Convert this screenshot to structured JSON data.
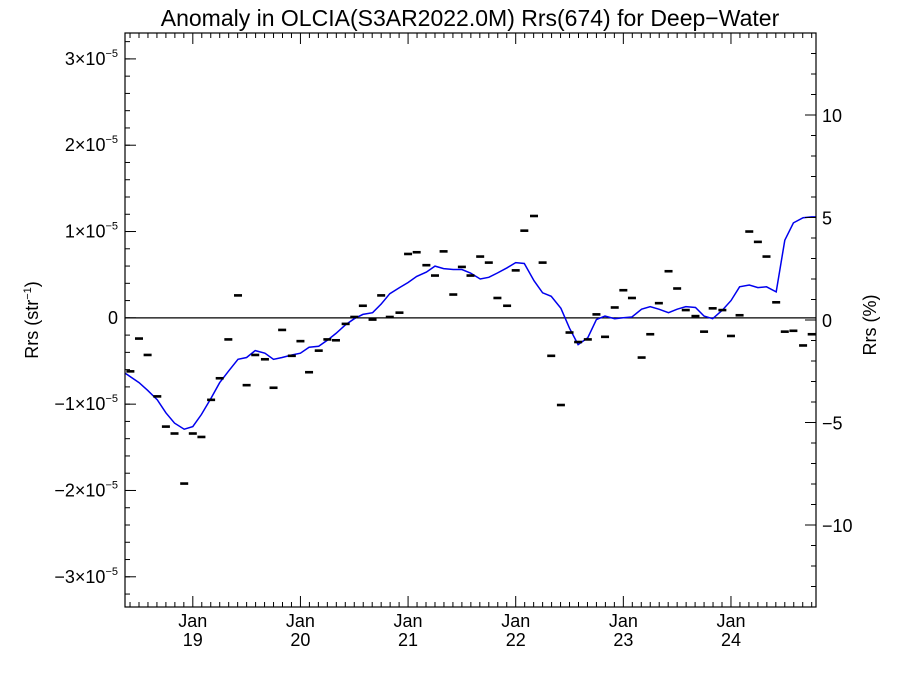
{
  "chart_data": {
    "type": "line",
    "title": "Anomaly in OLCIA(S3AR2022.0M) Rrs(674) for Deep−Water",
    "ylabel_left": {
      "main": "Rrs (str",
      "sup": "−1",
      "close": ")"
    },
    "ylabel_right": "Rrs (%)",
    "xlim": [
      2018.37,
      2024.79
    ],
    "ylim_left": [
      -3.35e-05,
      3.3e-05
    ],
    "ylim_right": [
      -14,
      14
    ],
    "x_ticks": [
      {
        "x": 2019.0,
        "month": "Jan",
        "year": "19"
      },
      {
        "x": 2020.0,
        "month": "Jan",
        "year": "20"
      },
      {
        "x": 2021.0,
        "month": "Jan",
        "year": "21"
      },
      {
        "x": 2022.0,
        "month": "Jan",
        "year": "22"
      },
      {
        "x": 2023.0,
        "month": "Jan",
        "year": "23"
      },
      {
        "x": 2024.0,
        "month": "Jan",
        "year": "24"
      }
    ],
    "y_ticks_left": [
      {
        "v": 3e-05,
        "label": "3×10",
        "exp": "−5"
      },
      {
        "v": 2e-05,
        "label": "2×10",
        "exp": "−5"
      },
      {
        "v": 1e-05,
        "label": "1×10",
        "exp": "−5"
      },
      {
        "v": 0,
        "label": "0",
        "exp": ""
      },
      {
        "v": -1e-05,
        "label": "−1×10",
        "exp": "−5"
      },
      {
        "v": -2e-05,
        "label": "−2×10",
        "exp": "−5"
      },
      {
        "v": -3e-05,
        "label": "−3×10",
        "exp": "−5"
      }
    ],
    "y_ticks_right": [
      {
        "v": 10,
        "label": "10"
      },
      {
        "v": 5,
        "label": "5"
      },
      {
        "v": 0,
        "label": "0"
      },
      {
        "v": -5,
        "label": "−5"
      },
      {
        "v": -10,
        "label": "−10"
      }
    ],
    "zero_line": true,
    "series": [
      {
        "style": "markers",
        "color": "#000000",
        "points": [
          [
            2018.42,
            -6.2e-06
          ],
          [
            2018.5,
            -2.4e-06
          ],
          [
            2018.58,
            -4.3e-06
          ],
          [
            2018.67,
            -9.1e-06
          ],
          [
            2018.75,
            -1.26e-05
          ],
          [
            2018.83,
            -1.34e-05
          ],
          [
            2018.92,
            -1.92e-05
          ],
          [
            2019.0,
            -1.34e-05
          ],
          [
            2019.08,
            -1.38e-05
          ],
          [
            2019.17,
            -9.5e-06
          ],
          [
            2019.25,
            -7e-06
          ],
          [
            2019.33,
            -2.5e-06
          ],
          [
            2019.42,
            2.6e-06
          ],
          [
            2019.5,
            -7.8e-06
          ],
          [
            2019.58,
            -4.3e-06
          ],
          [
            2019.67,
            -4.8e-06
          ],
          [
            2019.75,
            -8.1e-06
          ],
          [
            2019.83,
            -1.4e-06
          ],
          [
            2019.92,
            -4.4e-06
          ],
          [
            2020.0,
            -2.7e-06
          ],
          [
            2020.08,
            -6.3e-06
          ],
          [
            2020.17,
            -3.8e-06
          ],
          [
            2020.25,
            -2.5e-06
          ],
          [
            2020.33,
            -2.6e-06
          ],
          [
            2020.42,
            -7e-07
          ],
          [
            2020.5,
            1e-07
          ],
          [
            2020.58,
            1.4e-06
          ],
          [
            2020.67,
            -2e-07
          ],
          [
            2020.75,
            2.6e-06
          ],
          [
            2020.83,
            1e-07
          ],
          [
            2020.92,
            6e-07
          ],
          [
            2021.0,
            7.4e-06
          ],
          [
            2021.08,
            7.6e-06
          ],
          [
            2021.17,
            6.1e-06
          ],
          [
            2021.25,
            4.9e-06
          ],
          [
            2021.33,
            7.7e-06
          ],
          [
            2021.42,
            2.7e-06
          ],
          [
            2021.5,
            5.9e-06
          ],
          [
            2021.58,
            4.9e-06
          ],
          [
            2021.67,
            7.1e-06
          ],
          [
            2021.75,
            6.4e-06
          ],
          [
            2021.83,
            2.3e-06
          ],
          [
            2021.92,
            1.4e-06
          ],
          [
            2022.0,
            5.5e-06
          ],
          [
            2022.08,
            1.01e-05
          ],
          [
            2022.17,
            1.18e-05
          ],
          [
            2022.25,
            6.4e-06
          ],
          [
            2022.33,
            -4.4e-06
          ],
          [
            2022.42,
            -1.01e-05
          ],
          [
            2022.5,
            -1.7e-06
          ],
          [
            2022.58,
            -2.8e-06
          ],
          [
            2022.67,
            -2.5e-06
          ],
          [
            2022.75,
            4e-07
          ],
          [
            2022.83,
            -2.2e-06
          ],
          [
            2022.92,
            1.2e-06
          ],
          [
            2023.0,
            3.2e-06
          ],
          [
            2023.08,
            2.3e-06
          ],
          [
            2023.17,
            -4.6e-06
          ],
          [
            2023.25,
            -1.9e-06
          ],
          [
            2023.33,
            1.7e-06
          ],
          [
            2023.42,
            5.4e-06
          ],
          [
            2023.5,
            3.4e-06
          ],
          [
            2023.58,
            9e-07
          ],
          [
            2023.67,
            2e-07
          ],
          [
            2023.75,
            -1.6e-06
          ],
          [
            2023.83,
            1.1e-06
          ],
          [
            2023.92,
            9e-07
          ],
          [
            2024.0,
            -2.1e-06
          ],
          [
            2024.08,
            3e-07
          ],
          [
            2024.17,
            1e-05
          ],
          [
            2024.25,
            8.8e-06
          ],
          [
            2024.33,
            7.1e-06
          ],
          [
            2024.42,
            1.8e-06
          ],
          [
            2024.5,
            -1.6e-06
          ],
          [
            2024.58,
            -1.5e-06
          ],
          [
            2024.67,
            -3.2e-06
          ],
          [
            2024.75,
            -1.9e-06
          ]
        ]
      },
      {
        "style": "line",
        "color": "#0000ee",
        "points": [
          [
            2018.37,
            -6.4e-06
          ],
          [
            2018.5,
            -7.5e-06
          ],
          [
            2018.58,
            -8.4e-06
          ],
          [
            2018.67,
            -9.5e-06
          ],
          [
            2018.75,
            -1.1e-05
          ],
          [
            2018.83,
            -1.22e-05
          ],
          [
            2018.92,
            -1.29e-05
          ],
          [
            2019.0,
            -1.26e-05
          ],
          [
            2019.08,
            -1.12e-05
          ],
          [
            2019.17,
            -9.3e-06
          ],
          [
            2019.25,
            -7.5e-06
          ],
          [
            2019.33,
            -6.2e-06
          ],
          [
            2019.42,
            -4.8e-06
          ],
          [
            2019.5,
            -4.6e-06
          ],
          [
            2019.58,
            -3.8e-06
          ],
          [
            2019.67,
            -4.1e-06
          ],
          [
            2019.75,
            -4.8e-06
          ],
          [
            2019.83,
            -4.6e-06
          ],
          [
            2019.92,
            -4.3e-06
          ],
          [
            2020.0,
            -4.1e-06
          ],
          [
            2020.08,
            -3.4e-06
          ],
          [
            2020.17,
            -3.3e-06
          ],
          [
            2020.25,
            -2.6e-06
          ],
          [
            2020.33,
            -1.8e-06
          ],
          [
            2020.42,
            -8e-07
          ],
          [
            2020.5,
            -1e-07
          ],
          [
            2020.58,
            4e-07
          ],
          [
            2020.67,
            6e-07
          ],
          [
            2020.75,
            1.6e-06
          ],
          [
            2020.83,
            2.8e-06
          ],
          [
            2020.92,
            3.5e-06
          ],
          [
            2021.0,
            4.1e-06
          ],
          [
            2021.08,
            4.8e-06
          ],
          [
            2021.17,
            5.3e-06
          ],
          [
            2021.25,
            6e-06
          ],
          [
            2021.33,
            5.7e-06
          ],
          [
            2021.42,
            5.6e-06
          ],
          [
            2021.5,
            5.6e-06
          ],
          [
            2021.58,
            5.2e-06
          ],
          [
            2021.67,
            4.5e-06
          ],
          [
            2021.75,
            4.7e-06
          ],
          [
            2021.83,
            5.2e-06
          ],
          [
            2021.92,
            5.8e-06
          ],
          [
            2022.0,
            6.4e-06
          ],
          [
            2022.08,
            6.3e-06
          ],
          [
            2022.17,
            4.3e-06
          ],
          [
            2022.25,
            2.9e-06
          ],
          [
            2022.33,
            2.5e-06
          ],
          [
            2022.42,
            1.1e-06
          ],
          [
            2022.5,
            -1.2e-06
          ],
          [
            2022.58,
            -3.1e-06
          ],
          [
            2022.67,
            -2.3e-06
          ],
          [
            2022.75,
            -2e-07
          ],
          [
            2022.83,
            2e-07
          ],
          [
            2022.92,
            -1e-07
          ],
          [
            2023.0,
            0.0
          ],
          [
            2023.08,
            1e-07
          ],
          [
            2023.17,
            1e-06
          ],
          [
            2023.25,
            1.3e-06
          ],
          [
            2023.33,
            1e-06
          ],
          [
            2023.42,
            6e-07
          ],
          [
            2023.5,
            1e-06
          ],
          [
            2023.58,
            1.3e-06
          ],
          [
            2023.67,
            1.2e-06
          ],
          [
            2023.75,
            2e-07
          ],
          [
            2023.83,
            -1e-07
          ],
          [
            2023.92,
            9e-07
          ],
          [
            2024.0,
            2e-06
          ],
          [
            2024.08,
            3.6e-06
          ],
          [
            2024.17,
            3.8e-06
          ],
          [
            2024.25,
            3.5e-06
          ],
          [
            2024.33,
            3.6e-06
          ],
          [
            2024.42,
            3e-06
          ],
          [
            2024.5,
            9e-06
          ],
          [
            2024.58,
            1.1e-05
          ],
          [
            2024.67,
            1.16e-05
          ],
          [
            2024.75,
            1.17e-05
          ],
          [
            2024.79,
            1.17e-05
          ]
        ]
      }
    ]
  }
}
